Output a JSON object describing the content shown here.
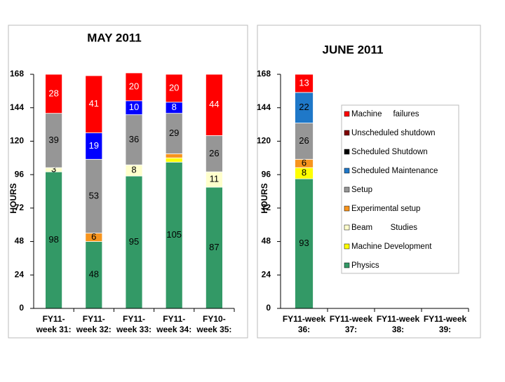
{
  "chart_data": [
    {
      "type": "stacked_bar",
      "title": "MAY 2011",
      "y_label": "HOURS",
      "categories": [
        "FY11-\nweek 31:",
        "FY11-\nweek 32:",
        "FY11-\nweek 33:",
        "FY11-\nweek 34:",
        "FY10-\nweek 35:"
      ],
      "ylim": [
        0,
        168
      ],
      "yticks": [
        0,
        24,
        48,
        72,
        96,
        120,
        144,
        168
      ],
      "series": [
        {
          "color": "#339966",
          "values": [
            98,
            48,
            95,
            105,
            87
          ],
          "value_labels": [
            "98",
            "48",
            "95",
            "105",
            "87"
          ]
        },
        {
          "color": "#ffff00",
          "values": [
            null,
            null,
            null,
            3,
            null
          ],
          "value_labels": [
            null,
            null,
            null,
            null,
            null
          ]
        },
        {
          "color": "#ffffcc",
          "values": [
            3,
            null,
            8,
            null,
            11
          ],
          "value_labels": [
            "3",
            null,
            "8",
            null,
            "11"
          ]
        },
        {
          "color": "#f7941d",
          "values": [
            null,
            6,
            null,
            3,
            null
          ],
          "value_labels": [
            null,
            "6",
            null,
            null,
            null
          ]
        },
        {
          "color": "#969696",
          "values": [
            39,
            53,
            36,
            29,
            26
          ],
          "value_labels": [
            "39",
            "53",
            "36",
            "29",
            "26"
          ]
        },
        {
          "color": "#0000ff",
          "values": [
            null,
            19,
            10,
            8,
            null
          ],
          "value_labels": [
            null,
            "19",
            "10",
            "8",
            null
          ]
        },
        {
          "color": "#ff0000",
          "values": [
            28,
            41,
            20,
            20,
            44
          ],
          "value_labels": [
            "28",
            "41",
            "20",
            "20",
            "44"
          ]
        }
      ]
    },
    {
      "type": "stacked_bar",
      "title": "JUNE 2011",
      "y_label": "HOURS",
      "categories": [
        "FY11-week\n36:",
        "FY11-week\n37:",
        "FY11-week\n38:",
        "FY11-week\n39:"
      ],
      "ylim": [
        0,
        168
      ],
      "yticks": [
        0,
        24,
        48,
        72,
        96,
        120,
        144,
        168
      ],
      "legend": "right",
      "series": [
        {
          "name": "Physics",
          "color": "#339966",
          "values": [
            93,
            null,
            null,
            null
          ],
          "value_labels": [
            "93",
            null,
            null,
            null
          ]
        },
        {
          "name": "Machine Development",
          "color": "#ffff00",
          "values": [
            8,
            null,
            null,
            null
          ],
          "value_labels": [
            "8",
            null,
            null,
            null
          ]
        },
        {
          "name": "Beam        Studies",
          "color": "#ffffcc",
          "values": [
            null,
            null,
            null,
            null
          ],
          "value_labels": [
            null,
            null,
            null,
            null
          ]
        },
        {
          "name": "Experimental setup",
          "color": "#f7941d",
          "values": [
            6,
            null,
            null,
            null
          ],
          "value_labels": [
            "6",
            null,
            null,
            null
          ]
        },
        {
          "name": "Setup",
          "color": "#969696",
          "values": [
            26,
            null,
            null,
            null
          ],
          "value_labels": [
            "26",
            null,
            null,
            null
          ]
        },
        {
          "name": "Scheduled Maintenance",
          "color": "#1f78c8",
          "values": [
            22,
            null,
            null,
            null
          ],
          "value_labels": [
            "22",
            null,
            null,
            null
          ]
        },
        {
          "name": "Scheduled Shutdown",
          "color": "#000000",
          "values": [
            null,
            null,
            null,
            null
          ],
          "value_labels": [
            null,
            null,
            null,
            null
          ]
        },
        {
          "name": "Unscheduled shutdown",
          "color": "#800000",
          "values": [
            null,
            null,
            null,
            null
          ],
          "value_labels": [
            null,
            null,
            null,
            null
          ]
        },
        {
          "name": "Machine     failures",
          "color": "#ff0000",
          "values": [
            13,
            null,
            null,
            null
          ],
          "value_labels": [
            "13",
            null,
            null,
            null
          ]
        }
      ]
    }
  ]
}
